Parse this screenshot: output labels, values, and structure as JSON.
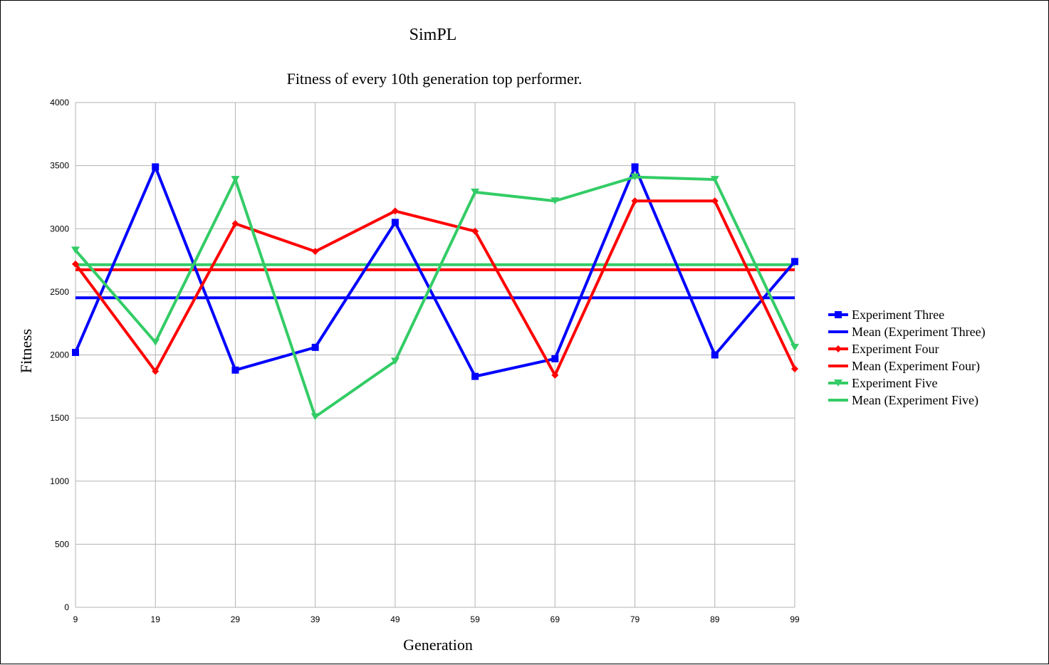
{
  "chart_data": {
    "type": "line",
    "title": "SimPL",
    "subtitle": "Fitness of every 10th generation top performer.",
    "xlabel": "Generation",
    "ylabel": "Fitness",
    "categories": [
      "9",
      "19",
      "29",
      "39",
      "49",
      "59",
      "69",
      "79",
      "89",
      "99"
    ],
    "ylim": [
      0,
      4000
    ],
    "yticks": [
      "0",
      "500",
      "1000",
      "1500",
      "2000",
      "2500",
      "3000",
      "3500",
      "4000"
    ],
    "grid": true,
    "legend_position": "right",
    "series": [
      {
        "name": "Experiment Three",
        "kind": "line",
        "marker": "square",
        "color": "#0000ff",
        "values": [
          2020,
          3490,
          1880,
          2060,
          3050,
          1830,
          1970,
          3490,
          2000,
          2740
        ]
      },
      {
        "name": "Mean (Experiment Three)",
        "kind": "mean",
        "color": "#0000ff",
        "value": 2453
      },
      {
        "name": "Experiment Four",
        "kind": "line",
        "marker": "diamond",
        "color": "#ff0000",
        "values": [
          2720,
          1870,
          3040,
          2820,
          3140,
          2980,
          1840,
          3220,
          3220,
          1890
        ]
      },
      {
        "name": "Mean (Experiment Four)",
        "kind": "mean",
        "color": "#ff0000",
        "value": 2675
      },
      {
        "name": "Experiment Five",
        "kind": "line",
        "marker": "triangle-down",
        "color": "#33cc66",
        "values": [
          2830,
          2100,
          3390,
          1510,
          1950,
          3290,
          3220,
          3410,
          3390,
          2060
        ]
      },
      {
        "name": "Mean (Experiment Five)",
        "kind": "mean",
        "color": "#33cc66",
        "value": 2715
      }
    ]
  }
}
